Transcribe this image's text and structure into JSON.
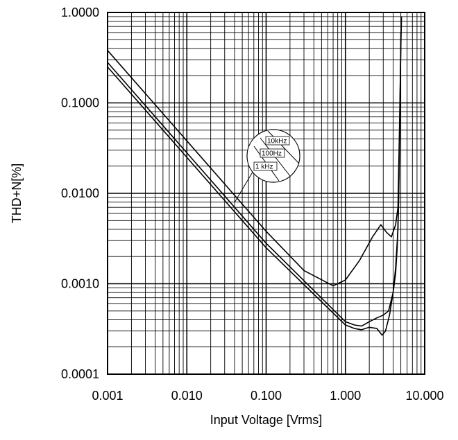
{
  "chart_data": {
    "type": "line",
    "xlabel": "Input Voltage [Vrms]",
    "ylabel": "THD+N[%]",
    "x_scale": "log",
    "y_scale": "log",
    "xlim": [
      0.001,
      10
    ],
    "ylim": [
      0.0001,
      1
    ],
    "grid": true,
    "x_ticks": [
      {
        "value": 0.001,
        "label": "0.001"
      },
      {
        "value": 0.01,
        "label": "0.010"
      },
      {
        "value": 0.1,
        "label": "0.100"
      },
      {
        "value": 1,
        "label": "1.000"
      },
      {
        "value": 10,
        "label": "10.000"
      }
    ],
    "y_ticks": [
      {
        "value": 1,
        "label": "1.0000"
      },
      {
        "value": 0.1,
        "label": "0.1000"
      },
      {
        "value": 0.01,
        "label": "0.0100"
      },
      {
        "value": 0.001,
        "label": "0.0010"
      },
      {
        "value": 0.0001,
        "label": "0.0001"
      }
    ],
    "series": [
      {
        "name": "10kHz",
        "x": [
          0.001,
          0.01,
          0.1,
          0.3,
          0.7,
          1.0,
          1.5,
          2.2,
          2.8,
          3.3,
          3.8,
          4.3,
          4.6,
          4.8,
          5.0,
          5.1
        ],
        "y": [
          0.38,
          0.038,
          0.0038,
          0.0014,
          0.00095,
          0.0011,
          0.0018,
          0.0033,
          0.0045,
          0.0037,
          0.0033,
          0.0045,
          0.007,
          0.05,
          0.4,
          0.9
        ]
      },
      {
        "name": "100Hz",
        "x": [
          0.001,
          0.01,
          0.1,
          1.0,
          1.3,
          1.6,
          2.0,
          2.5,
          3.0,
          3.5,
          4.0,
          4.3,
          4.5,
          4.7,
          4.9,
          5.0
        ],
        "y": [
          0.28,
          0.028,
          0.0028,
          0.00038,
          0.00035,
          0.00034,
          0.00038,
          0.00042,
          0.00045,
          0.0005,
          0.0008,
          0.0013,
          0.0025,
          0.008,
          0.08,
          0.6
        ]
      },
      {
        "name": "1 kHz",
        "x": [
          0.001,
          0.01,
          0.1,
          1.0,
          1.3,
          1.6,
          2.0,
          2.5,
          2.9,
          3.2,
          3.6,
          4.0,
          4.3,
          4.6,
          4.8,
          5.0
        ],
        "y": [
          0.25,
          0.025,
          0.0025,
          0.00035,
          0.00032,
          0.00031,
          0.00033,
          0.00032,
          0.00027,
          0.0003,
          0.00045,
          0.0008,
          0.0015,
          0.004,
          0.03,
          0.5
        ]
      }
    ],
    "legend": {
      "placement": "callout near center",
      "entries": [
        "10kHz",
        "100Hz",
        "1 kHz"
      ]
    }
  }
}
